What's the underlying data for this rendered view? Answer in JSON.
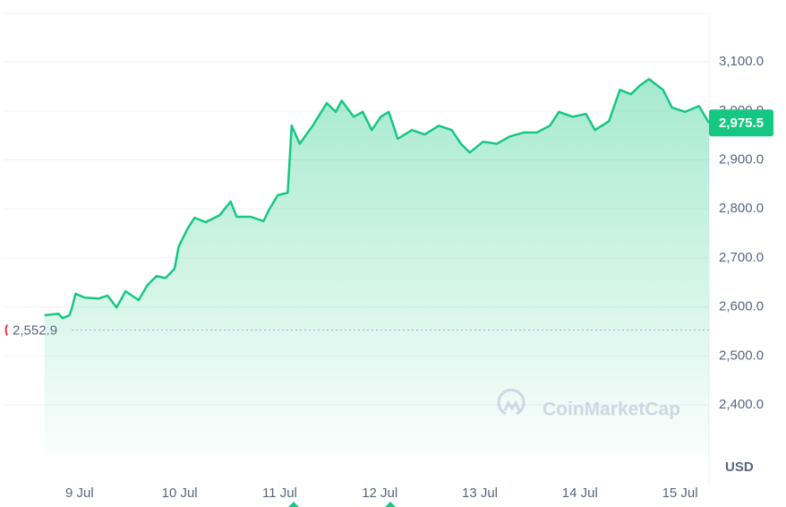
{
  "chart_data": {
    "type": "line",
    "x": [
      8.65,
      8.79,
      8.83,
      8.9,
      8.92,
      8.96,
      9.05,
      9.19,
      9.28,
      9.37,
      9.46,
      9.59,
      9.68,
      9.77,
      9.86,
      9.95,
      9.99,
      10.08,
      10.15,
      10.26,
      10.4,
      10.51,
      10.57,
      10.71,
      10.84,
      10.89,
      10.98,
      11.08,
      11.12,
      11.2,
      11.33,
      11.47,
      11.56,
      11.62,
      11.74,
      11.83,
      11.92,
      12.01,
      12.09,
      12.18,
      12.32,
      12.45,
      12.59,
      12.72,
      12.81,
      12.9,
      13.03,
      13.17,
      13.3,
      13.44,
      13.57,
      13.7,
      13.79,
      13.93,
      14.06,
      14.15,
      14.29,
      14.4,
      14.51,
      14.6,
      14.69,
      14.83,
      14.92,
      15.05,
      15.19,
      15.29
    ],
    "series": [
      {
        "color": "#16c784",
        "values": [
          2583,
          2586,
          2577,
          2583,
          2595,
          2627,
          2619,
          2617,
          2623,
          2599,
          2632,
          2614,
          2645,
          2663,
          2659,
          2678,
          2723,
          2760,
          2782,
          2773,
          2787,
          2815,
          2784,
          2784,
          2775,
          2797,
          2828,
          2833,
          2970,
          2933,
          2970,
          3016,
          2998,
          3021,
          2988,
          2998,
          2961,
          2988,
          2998,
          2943,
          2961,
          2952,
          2970,
          2961,
          2933,
          2915,
          2937,
          2933,
          2948,
          2956,
          2956,
          2970,
          2998,
          2988,
          2994,
          2961,
          2979,
          3043,
          3034,
          3052,
          3065,
          3043,
          3007,
          2998,
          3010,
          2975.5
        ]
      }
    ],
    "xlim": [
      8.25,
      15.29
    ],
    "ylim": [
      2294,
      3199
    ],
    "xticks": [
      {
        "value": 9,
        "label": "9 Jul"
      },
      {
        "value": 10,
        "label": "10 Jul"
      },
      {
        "value": 11,
        "label": "11 Jul"
      },
      {
        "value": 12,
        "label": "12 Jul"
      },
      {
        "value": 13,
        "label": "13 Jul"
      },
      {
        "value": 14,
        "label": "14 Jul"
      },
      {
        "value": 15,
        "label": "15 Jul"
      }
    ],
    "yticks": [
      {
        "value": 2400,
        "label": "2,400.0"
      },
      {
        "value": 2500,
        "label": "2,500.0"
      },
      {
        "value": 2600,
        "label": "2,600.0"
      },
      {
        "value": 2700,
        "label": "2,700.0"
      },
      {
        "value": 2800,
        "label": "2,800.0"
      },
      {
        "value": 2900,
        "label": "2,900.0"
      },
      {
        "value": 3000,
        "label": "3,000.0"
      },
      {
        "value": 3100,
        "label": "3,100.0"
      }
    ],
    "reference": {
      "value": 2552.9,
      "label": "2,552.9"
    },
    "current": {
      "value": 2975.5,
      "label": "2,975.5"
    },
    "y_unit": "USD",
    "watermark": "CoinMarketCap",
    "grid": true
  }
}
